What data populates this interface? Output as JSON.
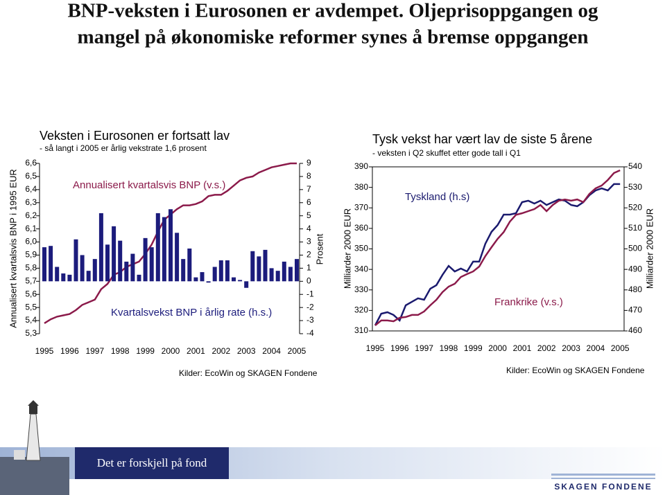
{
  "slide": {
    "title": [
      "BNP-veksten i Eurosonen er avdempet. Oljeprisoppgangen og",
      "mangel på økonomiske reformer synes å bremse oppgangen"
    ],
    "footer": "Det er forskjell på fond",
    "logo": "SKAGEN FONDENE"
  },
  "chart_data": [
    {
      "type": "bar",
      "title": "Veksten i Eurosonen er fortsatt lav",
      "subtitle": "- så langt i 2005 er årlig vekstrate 1,6 prosent",
      "y_label": "Annualisert kvartalsvis BNP i 1995 EUR",
      "y2_label": "Prosent",
      "source": "Kilder: EcoWin og SKAGEN Fondene",
      "categories": [
        "1995",
        null,
        null,
        null,
        "1996",
        null,
        null,
        null,
        "1997",
        null,
        null,
        null,
        "1998",
        null,
        null,
        null,
        "1999",
        null,
        null,
        null,
        "2000",
        null,
        null,
        null,
        "2001",
        null,
        null,
        null,
        "2002",
        null,
        null,
        null,
        "2003",
        null,
        null,
        null,
        "2004",
        null,
        null,
        null,
        "2005"
      ],
      "series": [
        {
          "name": "Annualisert kvartalsvis BNP (v.s.)",
          "type": "line",
          "color": "#8b1a4a",
          "values": [
            5.38,
            5.41,
            5.43,
            5.44,
            5.45,
            5.48,
            5.52,
            5.54,
            5.56,
            5.64,
            5.68,
            5.75,
            5.77,
            5.81,
            5.83,
            5.85,
            5.91,
            5.98,
            6.08,
            6.17,
            6.21,
            6.25,
            6.28,
            6.28,
            6.29,
            6.31,
            6.35,
            6.36,
            6.36,
            6.39,
            6.43,
            6.47,
            6.49,
            6.5,
            6.53,
            6.55,
            6.57,
            6.58,
            6.59,
            6.6,
            6.6
          ]
        },
        {
          "name": "Kvartalsvekst BNP i årlig rate (h.s.)",
          "type": "bar",
          "axis": "y2",
          "color": "#1c1c7c",
          "values": [
            2.6,
            2.7,
            1.1,
            0.6,
            0.5,
            3.2,
            2.0,
            0.8,
            1.7,
            5.2,
            2.8,
            4.2,
            3.1,
            1.5,
            2.1,
            0.5,
            3.3,
            2.6,
            5.2,
            4.9,
            5.5,
            3.7,
            1.7,
            2.5,
            0.3,
            0.7,
            -0.1,
            1.1,
            1.6,
            1.6,
            0.3,
            0.1,
            -0.5,
            2.3,
            1.9,
            2.4,
            1.0,
            0.8,
            1.5,
            1.1,
            1.7
          ]
        }
      ],
      "ylim": [
        5.3,
        6.6
      ],
      "yticks": [
        {
          "value": 5.3,
          "label": "5,3"
        },
        {
          "value": 5.4,
          "label": "5,4"
        },
        {
          "value": 5.5,
          "label": "5,5"
        },
        {
          "value": 5.6,
          "label": "5,6"
        },
        {
          "value": 5.7,
          "label": "5,7"
        },
        {
          "value": 5.8,
          "label": "5,8"
        },
        {
          "value": 5.9,
          "label": "5,9"
        },
        {
          "value": 6.0,
          "label": "6,0"
        },
        {
          "value": 6.1,
          "label": "6,1"
        },
        {
          "value": 6.2,
          "label": "6,2"
        },
        {
          "value": 6.3,
          "label": "6,3"
        },
        {
          "value": 6.4,
          "label": "6,4"
        },
        {
          "value": 6.5,
          "label": "6,5"
        },
        {
          "value": 6.6,
          "label": "6,6"
        }
      ],
      "y2lim": [
        -4,
        9
      ],
      "y2ticks": [
        -4,
        -3,
        -2,
        -1,
        0,
        1,
        2,
        3,
        4,
        5,
        6,
        7,
        8,
        9
      ],
      "grid": false
    },
    {
      "type": "line",
      "title": "Tysk vekst har vært lav de siste 5 årene",
      "subtitle": "- veksten i Q2 skuffet etter gode tall i Q1",
      "y_label": "Milliarder 2000 EUR",
      "y2_label": "Milliarder 2000 EUR",
      "source": "Kilder: EcoWin og SKAGEN Fondene",
      "categories": [
        "1995",
        null,
        null,
        null,
        "1996",
        null,
        null,
        null,
        "1997",
        null,
        null,
        null,
        "1998",
        null,
        null,
        null,
        "1999",
        null,
        null,
        null,
        "2000",
        null,
        null,
        null,
        "2001",
        null,
        null,
        null,
        "2002",
        null,
        null,
        null,
        "2003",
        null,
        null,
        null,
        "2004",
        null,
        null,
        null,
        "2005"
      ],
      "series": [
        {
          "name": "Tyskland (h.s)",
          "axis": "y2",
          "color": "#1a1a6e",
          "values": [
            462.7,
            468.4,
            469.1,
            467.8,
            465.1,
            472.5,
            474.2,
            475.9,
            475.2,
            480.6,
            482.3,
            487.3,
            491.7,
            489.0,
            490.4,
            489.0,
            493.8,
            493.8,
            502.5,
            508.3,
            511.6,
            516.7,
            516.7,
            517.4,
            522.8,
            523.5,
            522.1,
            523.5,
            521.4,
            522.8,
            524.1,
            523.5,
            521.4,
            520.8,
            522.8,
            526.2,
            528.5,
            529.5,
            528.5,
            531.6,
            531.6
          ]
        },
        {
          "name": "Frankrike (v.s.)",
          "color": "#8b1a4a",
          "values": [
            312.7,
            315.1,
            315.1,
            314.7,
            316.4,
            316.8,
            317.8,
            317.8,
            319.5,
            322.5,
            325.2,
            328.9,
            331.6,
            333.0,
            336.3,
            337.7,
            339.0,
            341.4,
            346.5,
            350.8,
            354.9,
            358.2,
            363.3,
            366.6,
            367.4,
            368.4,
            369.4,
            371.4,
            368.4,
            371.4,
            373.5,
            374.1,
            373.5,
            374.1,
            372.8,
            376.8,
            379.5,
            380.9,
            383.6,
            387.0,
            388.3
          ]
        }
      ],
      "ylim": [
        310,
        390
      ],
      "yticks": [
        310,
        320,
        330,
        340,
        350,
        360,
        370,
        380,
        390
      ],
      "y2lim": [
        460,
        540
      ],
      "y2ticks": [
        460,
        470,
        480,
        490,
        500,
        510,
        520,
        530,
        540
      ],
      "grid": false
    }
  ]
}
